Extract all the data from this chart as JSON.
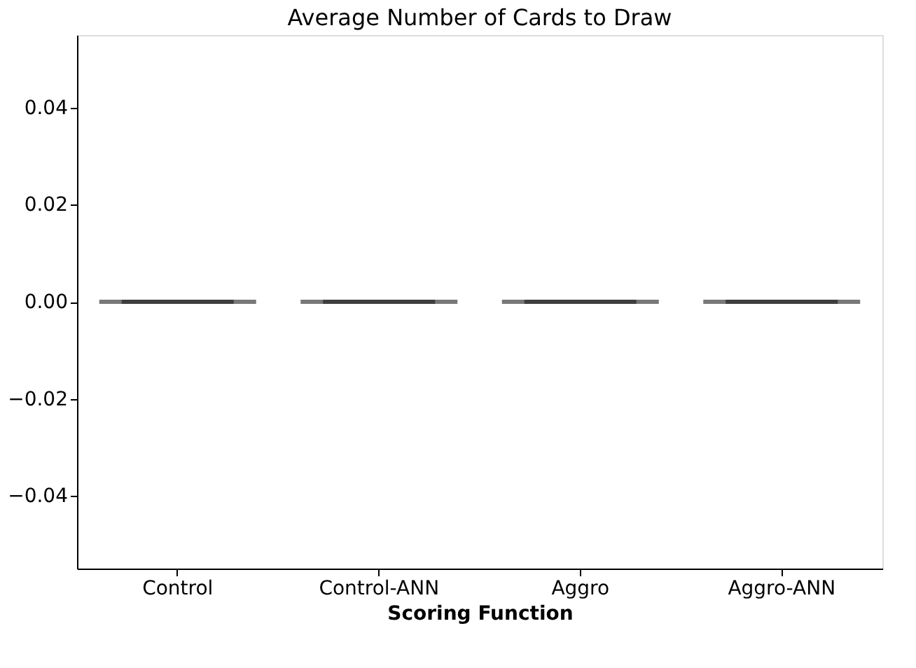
{
  "chart_data": {
    "type": "box",
    "title": "Average Number of Cards to Draw",
    "xlabel": "Scoring Function",
    "categories": [
      "Control",
      "Control-ANN",
      "Aggro",
      "Aggro-ANN"
    ],
    "boxes": [
      {
        "low": 0,
        "q1": 0,
        "median": 0,
        "q3": 0,
        "high": 0
      },
      {
        "low": 0,
        "q1": 0,
        "median": 0,
        "q3": 0,
        "high": 0
      },
      {
        "low": 0,
        "q1": 0,
        "median": 0,
        "q3": 0,
        "high": 0
      },
      {
        "low": 0,
        "q1": 0,
        "median": 0,
        "q3": 0,
        "high": 0
      }
    ],
    "color": "#3f3f3f",
    "ylim": [
      -0.055,
      0.055
    ],
    "yticks": [
      {
        "value": -0.04,
        "label": "−0.04"
      },
      {
        "value": -0.02,
        "label": "−0.02"
      },
      {
        "value": 0,
        "label": "0.00"
      },
      {
        "value": 0.02,
        "label": "0.02"
      },
      {
        "value": 0.04,
        "label": "0.04"
      }
    ],
    "grid": false
  }
}
